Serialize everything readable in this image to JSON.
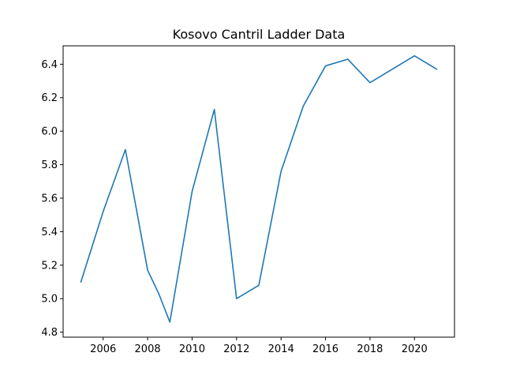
{
  "chart_data": {
    "type": "line",
    "title": "Kosovo Cantril Ladder Data",
    "xlabel": "",
    "ylabel": "",
    "x": [
      2005,
      2006,
      2007,
      2008,
      2008.5,
      2009,
      2010,
      2011,
      2012,
      2013,
      2014,
      2015,
      2016,
      2017,
      2018,
      2019,
      2020,
      2021
    ],
    "series": [
      {
        "name": "",
        "color": "#1f77b4",
        "values": [
          5.1,
          5.52,
          5.89,
          5.17,
          5.03,
          4.86,
          5.64,
          6.13,
          5.0,
          5.08,
          5.76,
          6.15,
          6.39,
          6.43,
          6.29,
          6.37,
          6.45,
          6.37
        ]
      }
    ],
    "xlim": [
      2004.2,
      2021.8
    ],
    "ylim": [
      4.77,
      6.51
    ],
    "xticks": [
      2006,
      2008,
      2010,
      2012,
      2014,
      2016,
      2018,
      2020
    ],
    "xtick_labels": [
      "2006",
      "2008",
      "2010",
      "2012",
      "2014",
      "2016",
      "2018",
      "2020"
    ],
    "yticks": [
      4.8,
      5.0,
      5.2,
      5.4,
      5.6,
      5.8,
      6.0,
      6.2,
      6.4
    ],
    "ytick_labels": [
      "4.8",
      "5.0",
      "5.2",
      "5.4",
      "5.6",
      "5.8",
      "6.0",
      "6.2",
      "6.4"
    ],
    "grid": false,
    "legend": "none"
  }
}
